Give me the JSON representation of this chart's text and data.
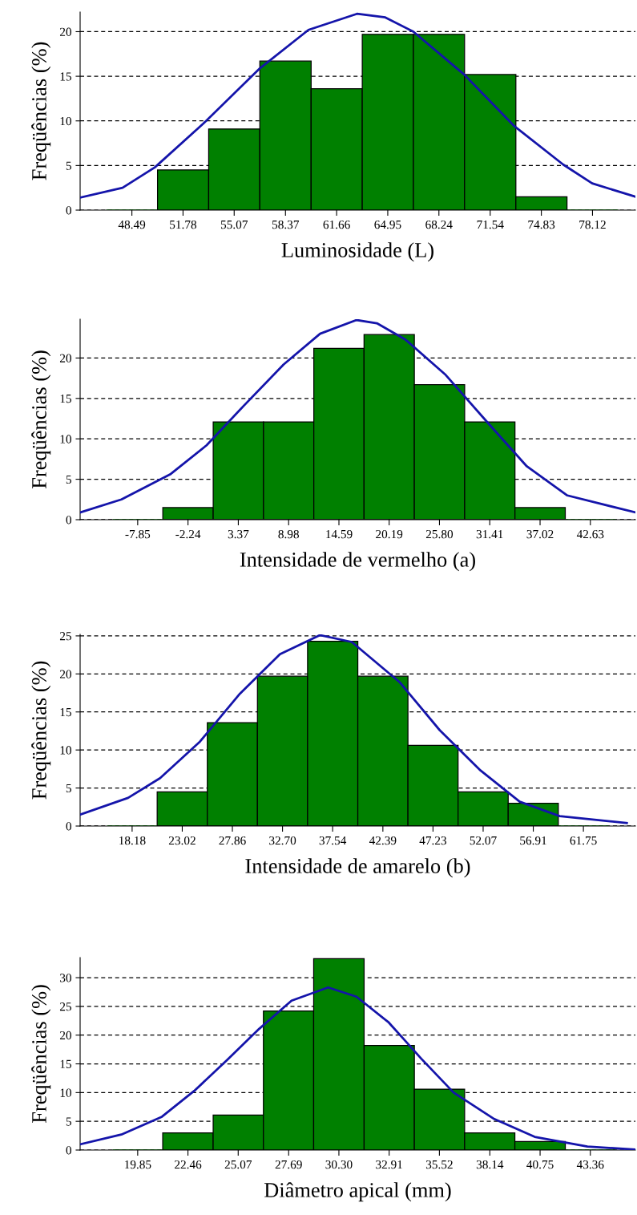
{
  "chart_data": [
    {
      "type": "histogram",
      "xlabel": "Luminosidade (L)",
      "ylabel": "Freqüências (%)",
      "color": "#008000",
      "bins": [
        46.85,
        50.14,
        53.43,
        56.72,
        60.02,
        63.31,
        66.6,
        69.89,
        73.19,
        76.48,
        79.77
      ],
      "values": [
        0,
        4.5,
        9.1,
        16.7,
        13.6,
        19.7,
        19.7,
        15.2,
        1.5,
        0
      ],
      "series": [
        {
          "type": "line",
          "color": "#1414aa",
          "x": [
            45.16,
            47.89,
            49.97,
            53.09,
            56.73,
            59.85,
            62.97,
            64.79,
            66.6,
            69.86,
            73.1,
            76.24,
            78.1,
            80.88
          ],
          "values": [
            1.4,
            2.5,
            4.8,
            9.7,
            15.9,
            20.2,
            22.0,
            21.6,
            20.0,
            15.2,
            9.4,
            5.1,
            3.0,
            1.5
          ]
        }
      ],
      "xlim": [
        45.16,
        80.88
      ],
      "ylim": [
        0,
        22.2
      ],
      "xticks": [
        48.49,
        51.78,
        55.07,
        58.37,
        61.66,
        64.95,
        68.24,
        71.54,
        74.83,
        78.12
      ],
      "yticks": [
        0,
        5,
        10,
        15,
        20
      ],
      "grid": "y",
      "line_style": "solid",
      "marker": "none"
    },
    {
      "type": "histogram",
      "xlabel": "Intensidade de vermelho (a)",
      "ylabel": "Freqüências (%)",
      "color": "#008000",
      "bins": [
        -10.66,
        -5.05,
        0.57,
        6.18,
        11.79,
        17.39,
        23.0,
        28.61,
        34.22,
        39.83,
        45.44
      ],
      "values": [
        0,
        1.5,
        12.1,
        12.1,
        21.2,
        22.9,
        16.7,
        12.1,
        1.5,
        0
      ],
      "series": [
        {
          "type": "line",
          "color": "#1414aa",
          "x": [
            -14.27,
            -9.66,
            -4.24,
            -0.17,
            3.9,
            8.42,
            12.49,
            16.56,
            18.82,
            21.98,
            26.5,
            31.02,
            35.54,
            40.06,
            47.65
          ],
          "values": [
            0.9,
            2.5,
            5.6,
            9.2,
            14.0,
            19.2,
            23.0,
            24.7,
            24.3,
            22.3,
            17.9,
            12.2,
            6.6,
            3.0,
            0.9
          ]
        }
      ],
      "xlim": [
        -14.27,
        47.65
      ],
      "ylim": [
        0,
        24.8
      ],
      "xticks": [
        -7.85,
        -2.24,
        3.37,
        8.98,
        14.59,
        20.19,
        {
          "value": 25.8,
          "label": "25.80"
        },
        31.41,
        37.02,
        42.63
      ],
      "yticks": [
        0,
        5,
        10,
        15,
        20
      ],
      "grid": "y",
      "line_style": "solid",
      "marker": "none"
    },
    {
      "type": "histogram",
      "xlabel": "Intensidade de amarelo (b)",
      "ylabel": "Freqüências (%)",
      "color": "#008000",
      "bins": [
        15.76,
        20.6,
        25.44,
        30.28,
        35.12,
        39.97,
        44.81,
        49.65,
        54.49,
        59.33,
        64.17
      ],
      "values": [
        0,
        4.5,
        13.6,
        19.7,
        24.3,
        19.7,
        10.6,
        4.5,
        3.0,
        0
      ],
      "series": [
        {
          "type": "line",
          "color": "#1414aa",
          "x": [
            13.16,
            17.79,
            20.88,
            24.73,
            28.59,
            32.45,
            36.31,
            39.39,
            44.02,
            47.88,
            51.74,
            55.6,
            59.46,
            65.94
          ],
          "values": [
            1.5,
            3.7,
            6.3,
            11.1,
            17.4,
            22.6,
            25.1,
            24.2,
            18.9,
            12.6,
            7.4,
            3.2,
            1.3,
            0.4
          ]
        }
      ],
      "xlim": [
        13.16,
        66.77
      ],
      "ylim": [
        0,
        25.2
      ],
      "xticks": [
        18.18,
        23.02,
        27.86,
        {
          "value": 32.7,
          "label": "32.70"
        },
        37.54,
        42.39,
        47.23,
        52.07,
        56.91,
        61.75
      ],
      "yticks": [
        0,
        5,
        10,
        15,
        20,
        25
      ],
      "grid": "y",
      "line_style": "solid",
      "marker": "none"
    },
    {
      "type": "histogram",
      "xlabel": "Diâmetro apical (mm)",
      "ylabel": "Freqüências (%)",
      "color": "#008000",
      "bins": [
        18.54,
        21.15,
        23.77,
        26.38,
        28.99,
        31.61,
        34.22,
        36.83,
        39.44,
        42.06,
        44.67
      ],
      "values": [
        0,
        3.0,
        6.1,
        24.2,
        33.3,
        18.2,
        10.6,
        3.0,
        1.5,
        0
      ],
      "series": [
        {
          "type": "line",
          "color": "#1414aa",
          "x": [
            16.86,
            19.0,
            21.11,
            22.79,
            24.47,
            26.16,
            27.84,
            29.74,
            31.21,
            32.89,
            34.58,
            36.26,
            38.37,
            40.47,
            43.21,
            45.7
          ],
          "values": [
            1.0,
            2.7,
            5.8,
            10.3,
            15.6,
            21.1,
            26.0,
            28.3,
            26.7,
            22.2,
            15.9,
            10.0,
            5.4,
            2.3,
            0.6,
            0.1
          ]
        }
      ],
      "xlim": [
        16.86,
        45.7
      ],
      "ylim": [
        0,
        33.5
      ],
      "xticks": [
        19.85,
        22.46,
        25.07,
        27.69,
        {
          "value": 30.3,
          "label": "30.30"
        },
        32.91,
        35.52,
        38.14,
        40.75,
        43.36
      ],
      "yticks": [
        0,
        5,
        10,
        15,
        20,
        25,
        30
      ],
      "grid": "y",
      "line_style": "solid",
      "marker": "none"
    }
  ]
}
